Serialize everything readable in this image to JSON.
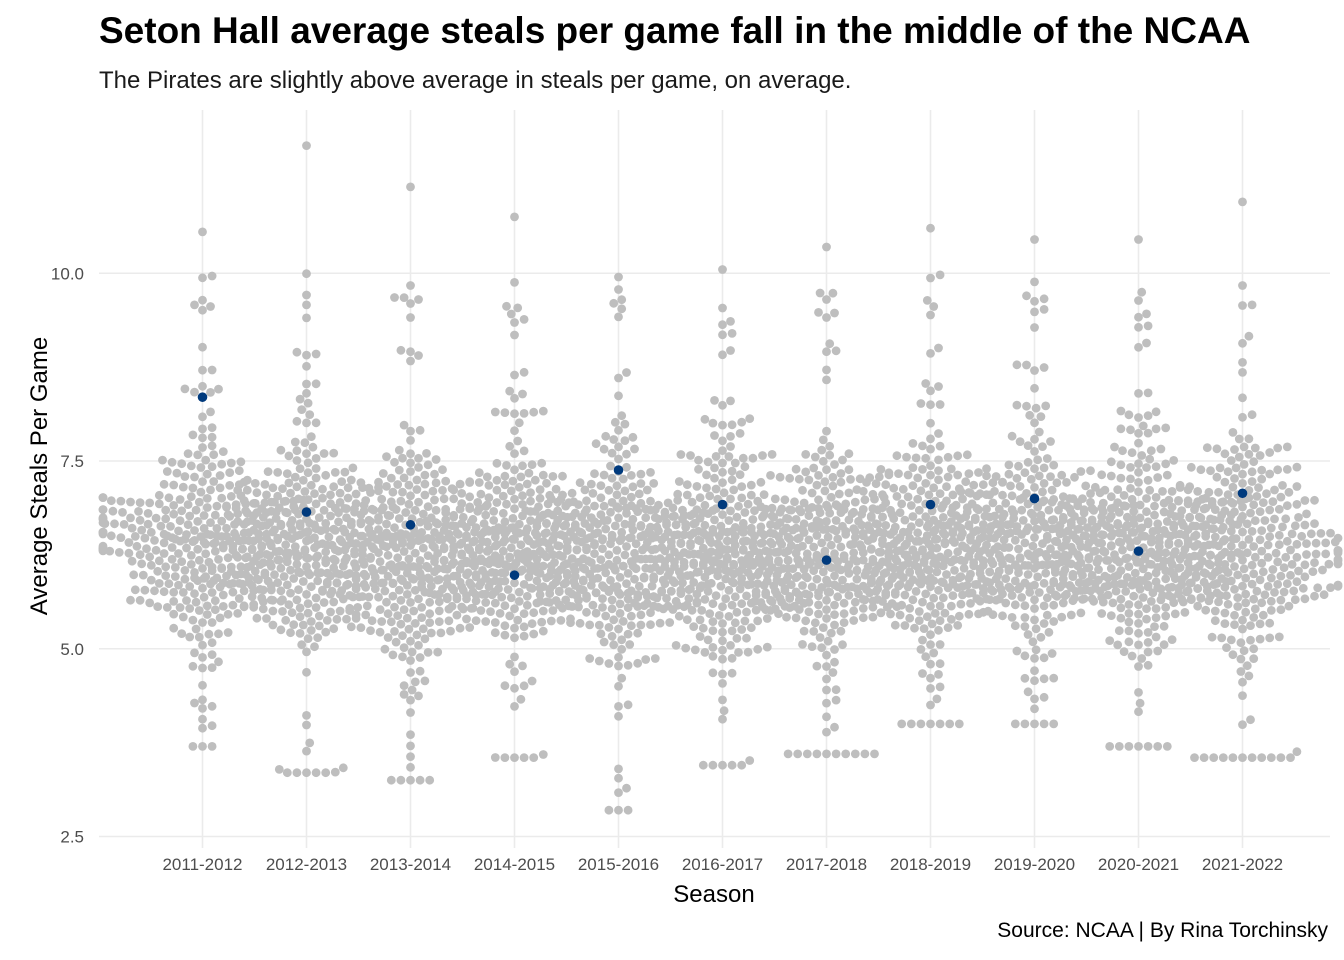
{
  "title": "Seton Hall average steals per game fall in the middle of the NCAA",
  "subtitle": "The Pirates are slightly above average in steals per game, on average.",
  "caption": "Source: NCAA | By Rina Torchinsky",
  "chart_data": {
    "type": "scatter",
    "xlabel": "Season",
    "ylabel": "Average Steals Per Game",
    "ylim": [
      2.5,
      11.9
    ],
    "yticks": [
      2.5,
      5.0,
      7.5,
      10.0
    ],
    "ytick_labels": [
      "2.5",
      "5.0",
      "7.5",
      "10.0"
    ],
    "grid": true,
    "categories": [
      "2011-2012",
      "2012-2013",
      "2013-2014",
      "2014-2015",
      "2015-2016",
      "2016-2017",
      "2017-2018",
      "2018-2019",
      "2019-2020",
      "2020-2021",
      "2021-2022"
    ],
    "series": [
      {
        "role": "all-teams",
        "color": "#bebebe",
        "count_per_season": 340,
        "mean": [
          6.4,
          6.4,
          6.3,
          6.3,
          6.3,
          6.3,
          6.3,
          6.4,
          6.4,
          6.4,
          6.4
        ],
        "min": [
          3.7,
          3.35,
          3.25,
          3.55,
          2.85,
          3.45,
          3.6,
          4.0,
          4.0,
          3.7,
          3.55
        ],
        "max": [
          10.55,
          11.7,
          11.15,
          10.75,
          9.95,
          10.05,
          10.35,
          10.6,
          10.45,
          10.45,
          10.95
        ]
      },
      {
        "name": "Seton Hall",
        "role": "highlight",
        "color": "#003a7d",
        "values": [
          8.35,
          6.82,
          6.65,
          5.98,
          7.38,
          6.92,
          6.18,
          6.92,
          7.0,
          6.3,
          7.07
        ]
      }
    ]
  }
}
